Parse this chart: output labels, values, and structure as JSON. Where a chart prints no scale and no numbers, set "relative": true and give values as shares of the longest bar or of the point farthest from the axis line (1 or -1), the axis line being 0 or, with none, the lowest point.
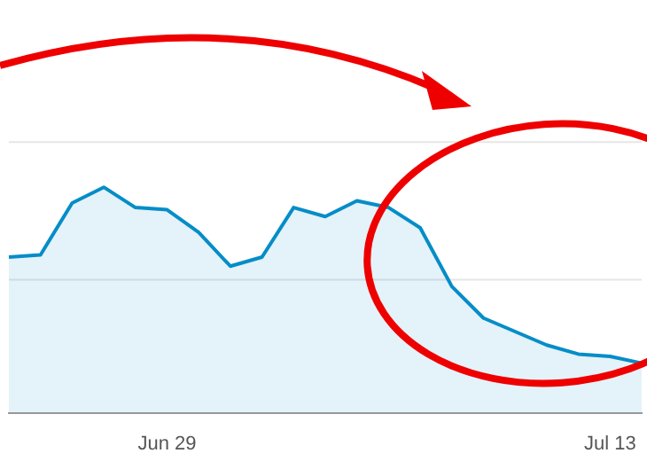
{
  "chart_data": {
    "type": "area",
    "relative": true,
    "categories": [
      null,
      null,
      null,
      null,
      null,
      "Jun 29",
      null,
      null,
      null,
      null,
      null,
      null,
      null,
      null,
      null,
      null,
      null,
      null,
      null,
      "Jul 13",
      null
    ],
    "series": [
      {
        "color": "#058dc7",
        "values": [
          0.69,
          0.7,
          0.93,
          1,
          0.91,
          0.9,
          0.8,
          0.65,
          0.69,
          0.91,
          0.87,
          0.94,
          0.91,
          0.82,
          0.56,
          0.42,
          0.36,
          0.3,
          0.26,
          0.25,
          0.22
        ]
      }
    ],
    "ref_lines": [
      {
        "axis": "y",
        "value": 0.59,
        "color": "#e6e6e6"
      },
      {
        "axis": "y",
        "value": 1.2,
        "color": "#e6e6e6"
      }
    ],
    "legend": false,
    "marker": "none",
    "line_style": "solid"
  }
}
